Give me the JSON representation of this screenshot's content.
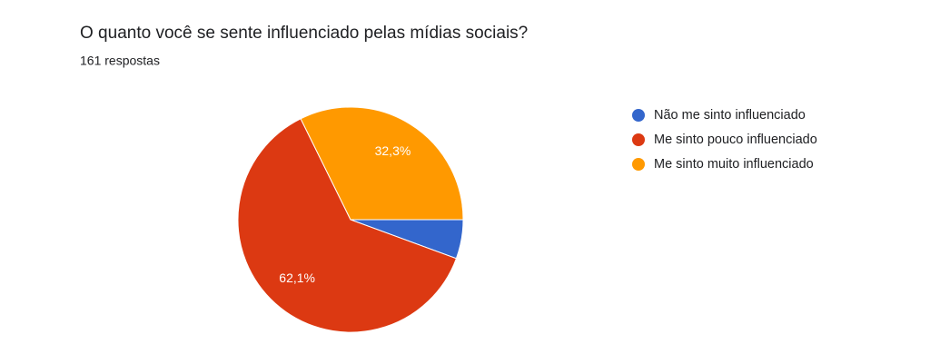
{
  "chart_data": {
    "type": "pie",
    "title": "O quanto você se sente influenciado pelas mídias sociais?",
    "subtitle": "161 respostas",
    "categories": [
      "Não me sinto influenciado",
      "Me sinto pouco influenciado",
      "Me sinto muito influenciado"
    ],
    "values": [
      5.6,
      62.1,
      32.3
    ],
    "value_labels": [
      null,
      "62,1%",
      "32,3%"
    ],
    "colors": [
      "#3366cc",
      "#dc3912",
      "#ff9900"
    ],
    "legend": "right"
  }
}
